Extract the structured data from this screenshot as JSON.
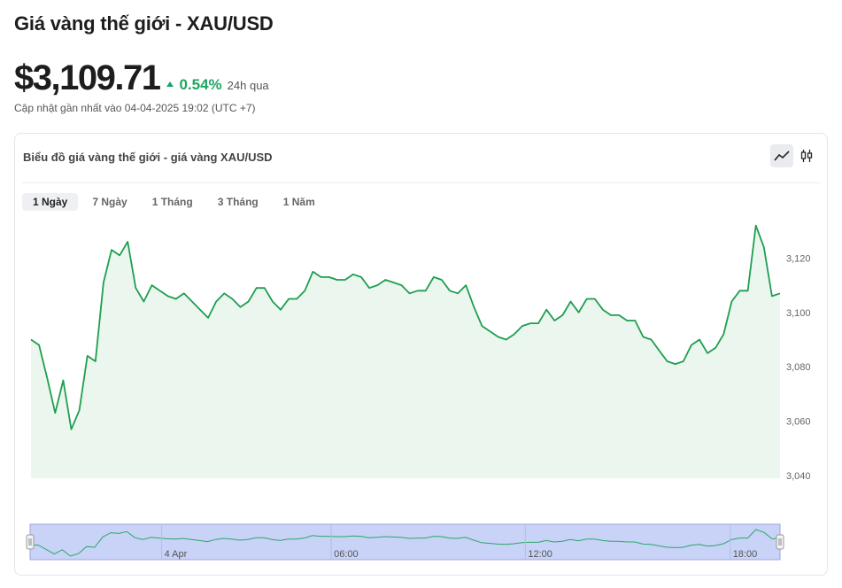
{
  "header": {
    "title": "Giá vàng thế giới - XAU/USD",
    "price": "$3,109.71",
    "change": "0.54%",
    "change_period": "24h qua",
    "updated": "Cập nhật gần nhất vào 04-04-2025 19:02 (UTC +7)"
  },
  "card": {
    "title": "Biểu đồ giá vàng thế giới - giá vàng XAU/USD",
    "ranges": [
      "1 Ngày",
      "7 Ngày",
      "1 Tháng",
      "3 Tháng",
      "1 Năm"
    ],
    "active_range": "1 Ngày",
    "chart_types": [
      "line-chart-icon",
      "candlestick-icon"
    ],
    "active_chart_type": "line-chart-icon"
  },
  "colors": {
    "line": "#1f9e50",
    "area": "#eaf6ee",
    "navigator_fill": "#c9d2f7",
    "navigator_line": "#2aa86a",
    "positive": "#1fa563"
  },
  "chart_data": {
    "type": "line",
    "title": "",
    "xlabel": "",
    "ylabel": "",
    "ylim": [
      3040,
      3135
    ],
    "yticks": [
      3040,
      3060,
      3080,
      3100,
      3120
    ],
    "ytick_labels": [
      "3,040",
      "3,060",
      "3,080",
      "3,100",
      "3,120"
    ],
    "series": [
      {
        "values": [
          3090,
          3088,
          3076,
          3063,
          3075,
          3057,
          3064,
          3084,
          3082,
          3111,
          3123,
          3121,
          3126,
          3109,
          3104,
          3110,
          3108,
          3106,
          3105,
          3107,
          3104,
          3101,
          3098,
          3104,
          3107,
          3105,
          3102,
          3104,
          3109,
          3109,
          3104,
          3101,
          3105,
          3105,
          3108,
          3115,
          3113,
          3113,
          3112,
          3112,
          3114,
          3113,
          3109,
          3110,
          3112,
          3111,
          3110,
          3107,
          3108,
          3108,
          3113,
          3112,
          3108,
          3107,
          3110,
          3102,
          3095,
          3093,
          3091,
          3090,
          3092,
          3095,
          3096,
          3096,
          3101,
          3097,
          3099,
          3104,
          3100,
          3105,
          3105,
          3101,
          3099,
          3099,
          3097,
          3097,
          3091,
          3090,
          3086,
          3082,
          3081,
          3082,
          3088,
          3090,
          3085,
          3087,
          3092,
          3104,
          3108,
          3108,
          3132,
          3124,
          3106,
          3107
        ]
      }
    ],
    "navigator": {
      "x_labels": [
        "4 Apr",
        "06:00",
        "12:00",
        "18:00"
      ],
      "x_positions": [
        0.218,
        0.444,
        0.703,
        0.976
      ]
    }
  }
}
